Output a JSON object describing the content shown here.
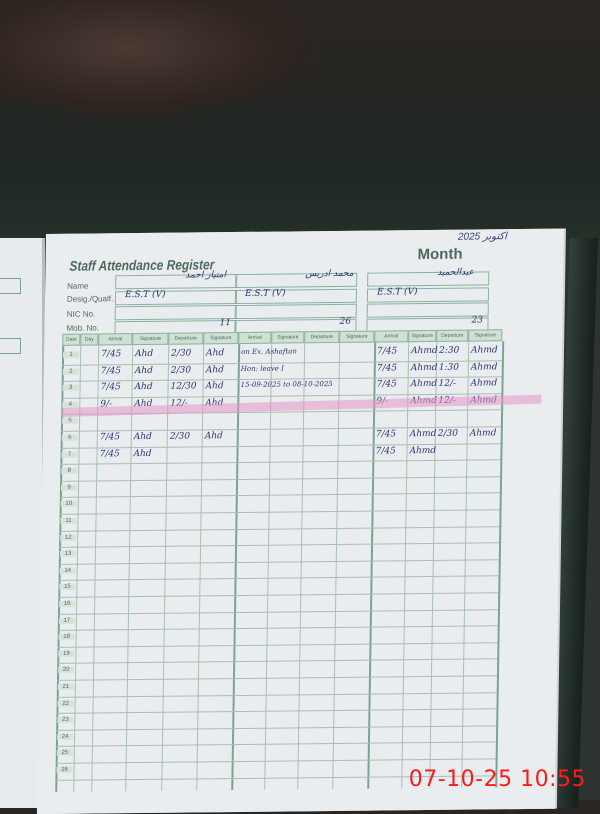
{
  "register": {
    "title": "Staff Attendance Register",
    "month_label": "Month",
    "month_value": "اکتوبر 2025",
    "field_labels": [
      "Name",
      "Desig./Qualf.",
      "NIC No.",
      "Mob. No."
    ],
    "staff": [
      {
        "name": "امتیاز احمد",
        "desig": "E.S.T (V)",
        "mob": "11"
      },
      {
        "name": "محمد ادریس",
        "desig": "E.S.T (V)",
        "mob": "26"
      },
      {
        "name": "عبدالحمید",
        "desig": "E.S.T (V)",
        "mob": "23"
      }
    ],
    "column_headers": [
      "Date",
      "Day",
      "Arrival",
      "Signature",
      "Departure",
      "Signature",
      "Arrival",
      "Signature",
      "Departure",
      "Signature",
      "Arrival",
      "Signature",
      "Departure",
      "Signature"
    ],
    "row_numbers": [
      "1",
      "2",
      "3",
      "4",
      "5",
      "6",
      "7",
      "8",
      "9",
      "10",
      "11",
      "12",
      "13",
      "14",
      "15",
      "16",
      "17",
      "18",
      "19",
      "20",
      "21",
      "22",
      "23",
      "24",
      "25",
      "26"
    ],
    "entries": [
      [
        "7/45",
        "Ahd",
        "2/30",
        "Ahd",
        "on Ex. Ashaftan",
        "",
        "",
        "",
        "7/45",
        "Ahmd",
        "2:30",
        "Ahmd"
      ],
      [
        "7/45",
        "Ahd",
        "2/30",
        "Ahd",
        "Hon: leave I",
        "",
        "",
        "",
        "7/45",
        "Ahmd",
        "1:30",
        "Ahmd"
      ],
      [
        "7/45",
        "Ahd",
        "12/30",
        "Ahd",
        "15-09-2025 to 08-10-2025",
        "",
        "",
        "",
        "7/45",
        "Ahmd",
        "12/-",
        "Ahmd"
      ],
      [
        "9/-",
        "Ahd",
        "12/-",
        "Ahd",
        "",
        "",
        "",
        "",
        "9/-",
        "Ahmd",
        "12/-",
        "Ahmd"
      ],
      [
        "",
        "",
        "",
        "",
        "",
        "",
        "",
        "",
        "",
        "",
        "",
        ""
      ],
      [
        "7/45",
        "Ahd",
        "2/30",
        "Ahd",
        "",
        "",
        "",
        "",
        "7/45",
        "Ahmd",
        "2/30",
        "Ahmd"
      ],
      [
        "7/45",
        "Ahd",
        "",
        "",
        "",
        "",
        "",
        "",
        "7/45",
        "Ahmd",
        "",
        ""
      ]
    ]
  },
  "timestamp": "07-10-25  10:55",
  "colors": {
    "ink": "#2e3470",
    "print": "#4f6a5c",
    "highlight": "#e696c8",
    "stamp": "#ff1a1a"
  }
}
